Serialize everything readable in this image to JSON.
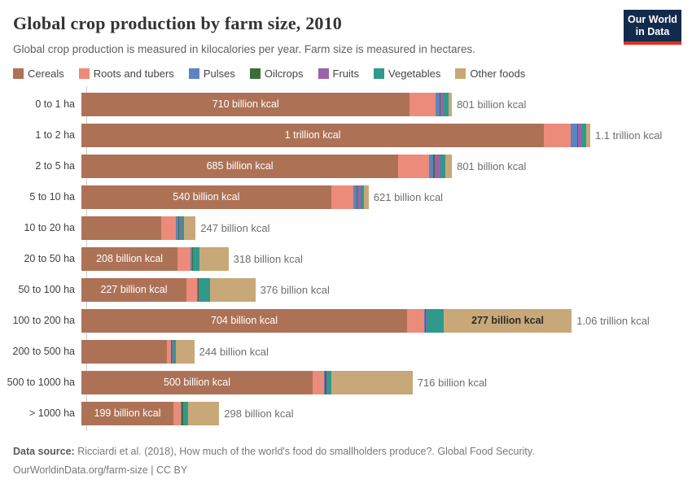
{
  "header": {
    "title": "Global crop production by farm size, 2010",
    "subtitle": "Global crop production is measured in kilocalories per year. Farm size is measured in hectares.",
    "logo": {
      "line1": "Our World",
      "line2": "in Data"
    }
  },
  "chart_data": {
    "type": "bar",
    "stacked": true,
    "orientation": "horizontal",
    "unit": "kilocalories per year",
    "xmax_billion": 1100,
    "grid": false,
    "legend_position": "top",
    "categories": [
      "0 to 1 ha",
      "1 to 2 ha",
      "2 to 5 ha",
      "5 to 10 ha",
      "10 to 20 ha",
      "20 to 50 ha",
      "50 to 100 ha",
      "100 to 200 ha",
      "200 to 500 ha",
      "500 to 1000 ha",
      "> 1000 ha"
    ],
    "series": [
      {
        "name": "Cereals",
        "color": "#AD7256",
        "values": [
          710,
          1000,
          685,
          540,
          173,
          208,
          227,
          704,
          184,
          500,
          199
        ]
      },
      {
        "name": "Roots and tubers",
        "color": "#ED8B7B",
        "values": [
          55,
          57,
          66,
          48,
          32,
          27,
          23,
          37,
          9,
          25,
          16
        ]
      },
      {
        "name": "Pulses",
        "color": "#5C84C4",
        "values": [
          9,
          14,
          9,
          7,
          5,
          4,
          2,
          2,
          1,
          1,
          1
        ]
      },
      {
        "name": "Oilcrops",
        "color": "#3D6E3A",
        "values": [
          2,
          2,
          4,
          2,
          2,
          2,
          2,
          2,
          2,
          4,
          4
        ]
      },
      {
        "name": "Fruits",
        "color": "#9B62A9",
        "values": [
          7,
          7,
          12,
          7,
          2,
          1,
          1,
          2,
          1,
          1,
          1
        ]
      },
      {
        "name": "Vegetables",
        "color": "#2F998B",
        "values": [
          11,
          11,
          11,
          7,
          7,
          14,
          23,
          36,
          7,
          9,
          9
        ]
      },
      {
        "name": "Other foods",
        "color": "#C8A878",
        "values": [
          7,
          9,
          14,
          10,
          26,
          62,
          98,
          277,
          40,
          176,
          68
        ]
      }
    ],
    "cereal_labels": [
      "710 billion kcal",
      "1 trillion kcal",
      "685 billion kcal",
      "540 billion kcal",
      "",
      "208 billion kcal",
      "227 billion kcal",
      "704 billion kcal",
      "",
      "500 billion kcal",
      "199 billion kcal"
    ],
    "other_labels": [
      "",
      "",
      "",
      "",
      "",
      "",
      "",
      "277 billion kcal",
      "",
      "",
      ""
    ],
    "totals": [
      "801 billion kcal",
      "1.1 trillion kcal",
      "801 billion kcal",
      "621 billion kcal",
      "247 billion kcal",
      "318 billion kcal",
      "376 billion kcal",
      "1.06 trillion kcal",
      "244 billion kcal",
      "716 billion kcal",
      "298 billion kcal"
    ]
  },
  "footer": {
    "source_label": "Data source:",
    "source_text": "Ricciardi et al. (2018), How much of the world's food do smallholders produce?. Global Food Security.",
    "link_line": "OurWorldinData.org/farm-size | CC BY"
  }
}
